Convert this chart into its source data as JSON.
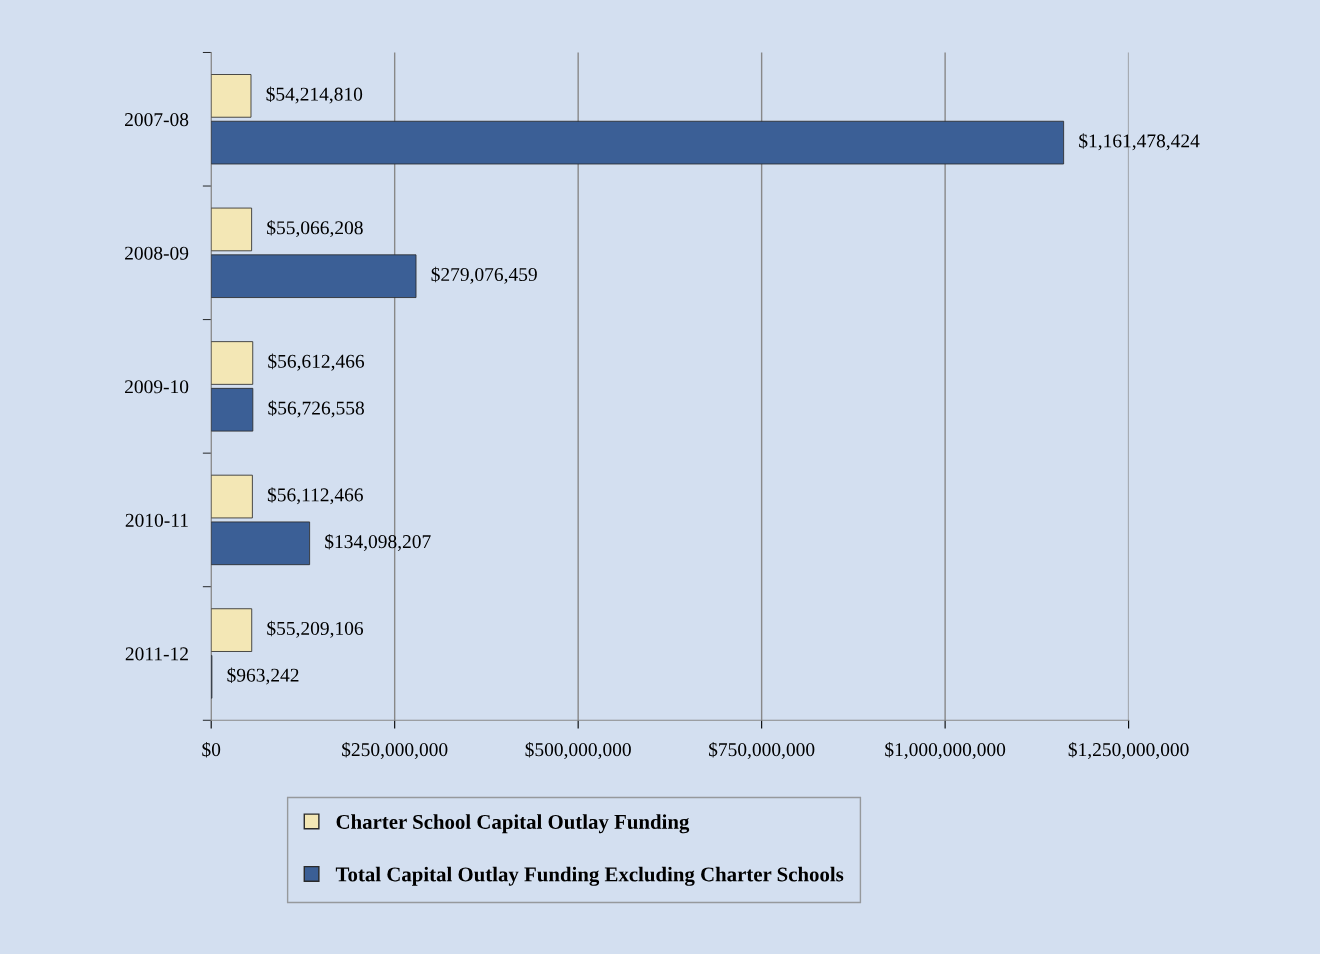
{
  "chart_data": {
    "type": "bar",
    "orientation": "horizontal",
    "categories": [
      "2007-08",
      "2008-09",
      "2009-10",
      "2010-11",
      "2011-12"
    ],
    "series": [
      {
        "name": "Charter School Capital Outlay Funding",
        "color": "#f3e7b5",
        "values": [
          54214810,
          55066208,
          56612466,
          56112466,
          55209106
        ],
        "value_labels": [
          "$54,214,810",
          "$55,066,208",
          "$56,612,466",
          "$56,112,466",
          "$55,209,106"
        ]
      },
      {
        "name": "Total Capital Outlay Funding Excluding Charter Schools",
        "color": "#3b5f96",
        "values": [
          1161478424,
          279076459,
          56726558,
          134098207,
          963242
        ],
        "value_labels": [
          "$1,161,478,424",
          "$279,076,459",
          "$56,726,558",
          "$134,098,207",
          "$963,242"
        ]
      }
    ],
    "xlim": [
      0,
      1250000000
    ],
    "xticks": [
      {
        "value": 0,
        "label": "$0"
      },
      {
        "value": 250000000,
        "label": "$250,000,000"
      },
      {
        "value": 500000000,
        "label": "$500,000,000"
      },
      {
        "value": 750000000,
        "label": "$750,000,000"
      },
      {
        "value": 1000000000,
        "label": "$1,000,000,000"
      },
      {
        "value": 1250000000,
        "label": "$1,250,000,000"
      }
    ],
    "grid": "x",
    "legend": "bottom"
  }
}
